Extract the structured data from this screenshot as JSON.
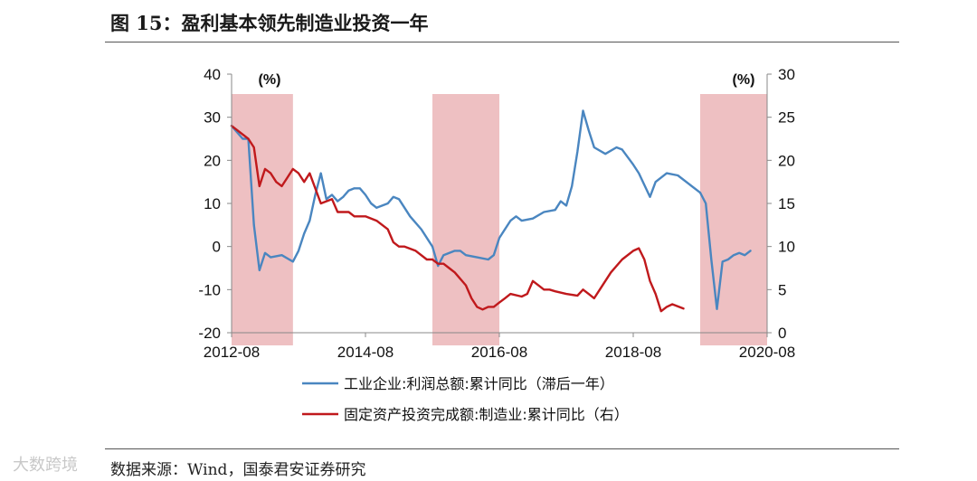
{
  "figure": {
    "title": "图 15：盈利基本领先制造业投资一年",
    "source": "数据来源：Wind，国泰君安证券研究",
    "watermark": "大数跨境"
  },
  "chart_data": {
    "type": "line",
    "left_unit": "(%)",
    "right_unit": "(%)",
    "ylim_left": [
      -20,
      40
    ],
    "ylim_right": [
      0,
      30
    ],
    "yticks_left": [
      "40",
      "30",
      "20",
      "10",
      "0",
      "-10",
      "-20"
    ],
    "yticks_right": [
      "30",
      "25",
      "20",
      "15",
      "10",
      "5",
      "0"
    ],
    "xticks": [
      "2012-08",
      "2014-08",
      "2016-08",
      "2018-08",
      "2020-08"
    ],
    "xlim": [
      "2012-08",
      "2020-08"
    ],
    "shaded_periods": [
      [
        "2012-08",
        "2013-07"
      ],
      [
        "2015-08",
        "2016-08"
      ],
      [
        "2019-08",
        "2020-08"
      ]
    ],
    "colors": {
      "blue": "#4a86c0",
      "red": "#c0191c",
      "shade": "#eec0c2"
    },
    "series": [
      {
        "name": "工业企业:利润总额:累计同比（滞后一年）",
        "axis": "left",
        "color": "#4a86c0",
        "points": [
          [
            "2012-08",
            28
          ],
          [
            "2012-10",
            25
          ],
          [
            "2012-11",
            25
          ],
          [
            "2012-12",
            5
          ],
          [
            "2013-01",
            -5.5
          ],
          [
            "2013-02",
            -1.5
          ],
          [
            "2013-03",
            -2.5
          ],
          [
            "2013-05",
            -2
          ],
          [
            "2013-07",
            -3.5
          ],
          [
            "2013-08",
            -1
          ],
          [
            "2013-09",
            3
          ],
          [
            "2013-10",
            6
          ],
          [
            "2013-11",
            12
          ],
          [
            "2013-12",
            17
          ],
          [
            "2014-01",
            11
          ],
          [
            "2014-02",
            12
          ],
          [
            "2014-03",
            10.5
          ],
          [
            "2014-04",
            11.5
          ],
          [
            "2014-05",
            13
          ],
          [
            "2014-06",
            13.5
          ],
          [
            "2014-07",
            13.5
          ],
          [
            "2014-08",
            12
          ],
          [
            "2014-09",
            10
          ],
          [
            "2014-10",
            9
          ],
          [
            "2014-11",
            9.5
          ],
          [
            "2014-12",
            10
          ],
          [
            "2015-01",
            11.5
          ],
          [
            "2015-02",
            11
          ],
          [
            "2015-04",
            7
          ],
          [
            "2015-06",
            4
          ],
          [
            "2015-08",
            0
          ],
          [
            "2015-09",
            -4.5
          ],
          [
            "2015-10",
            -2
          ],
          [
            "2015-12",
            -1
          ],
          [
            "2016-01",
            -1
          ],
          [
            "2016-02",
            -2
          ],
          [
            "2016-04",
            -2.5
          ],
          [
            "2016-06",
            -3
          ],
          [
            "2016-07",
            -2
          ],
          [
            "2016-08",
            2
          ],
          [
            "2016-10",
            6
          ],
          [
            "2016-11",
            7
          ],
          [
            "2016-12",
            6
          ],
          [
            "2017-02",
            6.5
          ],
          [
            "2017-04",
            8
          ],
          [
            "2017-06",
            8.5
          ],
          [
            "2017-07",
            10.5
          ],
          [
            "2017-08",
            9.5
          ],
          [
            "2017-09",
            14
          ],
          [
            "2017-10",
            22
          ],
          [
            "2017-11",
            31.5
          ],
          [
            "2017-12",
            27
          ],
          [
            "2018-01",
            23
          ],
          [
            "2018-03",
            21.5
          ],
          [
            "2018-05",
            23
          ],
          [
            "2018-06",
            22.5
          ],
          [
            "2018-08",
            19
          ],
          [
            "2018-09",
            17
          ],
          [
            "2018-11",
            11.5
          ],
          [
            "2018-12",
            15
          ],
          [
            "2019-02",
            17
          ],
          [
            "2019-04",
            16.5
          ],
          [
            "2019-06",
            14.5
          ],
          [
            "2019-08",
            12.5
          ],
          [
            "2019-09",
            10
          ],
          [
            "2019-10",
            -3
          ],
          [
            "2019-11",
            -14.5
          ],
          [
            "2019-12",
            -3.5
          ],
          [
            "2020-01",
            -3
          ],
          [
            "2020-02",
            -2
          ],
          [
            "2020-03",
            -1.5
          ],
          [
            "2020-04",
            -2
          ],
          [
            "2020-05",
            -1
          ]
        ]
      },
      {
        "name": "固定资产投资完成额:制造业:累计同比（右）",
        "axis": "right",
        "color": "#c0191c",
        "points": [
          [
            "2012-08",
            24
          ],
          [
            "2012-10",
            23
          ],
          [
            "2012-11",
            22.5
          ],
          [
            "2012-12",
            21.5
          ],
          [
            "2013-01",
            17
          ],
          [
            "2013-02",
            19
          ],
          [
            "2013-03",
            18.5
          ],
          [
            "2013-04",
            17.5
          ],
          [
            "2013-05",
            17
          ],
          [
            "2013-06",
            18
          ],
          [
            "2013-07",
            19
          ],
          [
            "2013-08",
            18.5
          ],
          [
            "2013-09",
            17.5
          ],
          [
            "2013-10",
            18.5
          ],
          [
            "2013-12",
            15
          ],
          [
            "2014-02",
            15.5
          ],
          [
            "2014-03",
            14
          ],
          [
            "2014-05",
            14
          ],
          [
            "2014-06",
            13.5
          ],
          [
            "2014-08",
            13.5
          ],
          [
            "2014-10",
            13
          ],
          [
            "2014-12",
            12
          ],
          [
            "2015-01",
            10.5
          ],
          [
            "2015-02",
            10
          ],
          [
            "2015-03",
            10
          ],
          [
            "2015-05",
            9.5
          ],
          [
            "2015-07",
            8.5
          ],
          [
            "2015-08",
            8.5
          ],
          [
            "2015-09",
            8
          ],
          [
            "2015-10",
            8
          ],
          [
            "2015-11",
            7.5
          ],
          [
            "2015-12",
            7
          ],
          [
            "2016-02",
            5.5
          ],
          [
            "2016-03",
            4
          ],
          [
            "2016-04",
            3
          ],
          [
            "2016-05",
            2.7
          ],
          [
            "2016-06",
            3
          ],
          [
            "2016-07",
            3
          ],
          [
            "2016-08",
            3.5
          ],
          [
            "2016-09",
            4
          ],
          [
            "2016-10",
            4.5
          ],
          [
            "2016-12",
            4.2
          ],
          [
            "2017-01",
            4.5
          ],
          [
            "2017-02",
            6
          ],
          [
            "2017-03",
            5.5
          ],
          [
            "2017-04",
            5
          ],
          [
            "2017-05",
            5
          ],
          [
            "2017-06",
            4.8
          ],
          [
            "2017-08",
            4.5
          ],
          [
            "2017-10",
            4.3
          ],
          [
            "2017-11",
            5
          ],
          [
            "2017-12",
            4.5
          ],
          [
            "2018-01",
            4
          ],
          [
            "2018-02",
            5
          ],
          [
            "2018-04",
            7
          ],
          [
            "2018-06",
            8.5
          ],
          [
            "2018-08",
            9.5
          ],
          [
            "2018-09",
            9.8
          ],
          [
            "2018-10",
            8.5
          ],
          [
            "2018-11",
            6
          ],
          [
            "2018-12",
            4.5
          ],
          [
            "2019-01",
            2.5
          ],
          [
            "2019-02",
            3
          ],
          [
            "2019-03",
            3.3
          ],
          [
            "2019-05",
            2.8
          ]
        ]
      }
    ]
  }
}
